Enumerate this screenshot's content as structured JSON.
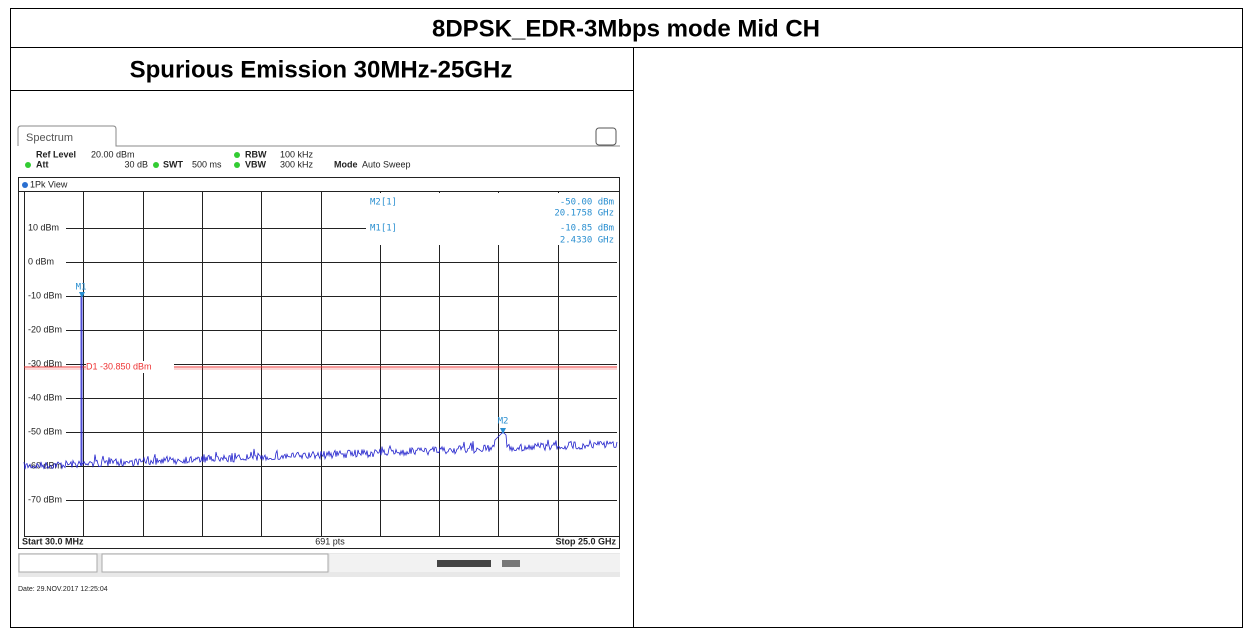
{
  "header": {
    "title": "8DPSK_EDR-3Mbps mode Mid CH"
  },
  "section": {
    "title": "Spurious Emission 30MHz-25GHz"
  },
  "screenshot": {
    "tab": "Spectrum",
    "ref_level": {
      "label": "Ref Level",
      "value": "20.00 dBm"
    },
    "att": {
      "label": "Att",
      "value": "30 dB"
    },
    "swt": {
      "label": "SWT",
      "value": "500 ms"
    },
    "rbw": {
      "label": "RBW",
      "value": "100 kHz"
    },
    "vbw": {
      "label": "VBW",
      "value": "300 kHz"
    },
    "mode": {
      "label": "Mode",
      "value": "Auto Sweep"
    },
    "view": "1Pk View",
    "y_labels": [
      "10 dBm",
      "0 dBm",
      "-10 dBm",
      "-20 dBm",
      "-30 dBm",
      "-40 dBm",
      "-50 dBm",
      "-60 dBm",
      "-70 dBm"
    ],
    "markers": [
      {
        "name": "M2[1]",
        "level": "-50.00 dBm",
        "freq": "20.1758 GHz"
      },
      {
        "name": "M1[1]",
        "level": "-10.85 dBm",
        "freq": "2.4330 GHz"
      }
    ],
    "marker_tags": [
      "M1",
      "M2"
    ],
    "display_line": "D1 -30.850 dBm",
    "start": "Start 30.0 MHz",
    "points": "691 pts",
    "stop": "Stop 25.0 GHz",
    "date": "Date: 29.NOV.2017 12:25:04"
  }
}
